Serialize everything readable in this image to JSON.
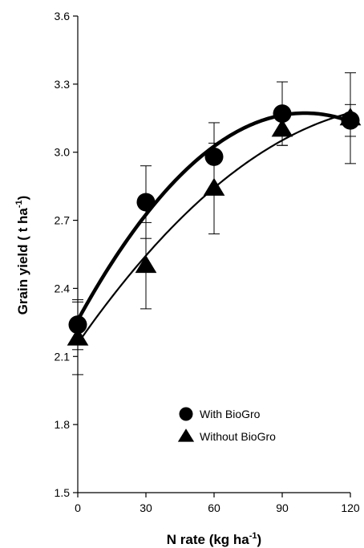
{
  "chart_data": {
    "type": "scatter",
    "title": "",
    "xlabel": "N rate (kg ha",
    "xlabel_sup": "-1",
    "xlabel_end": ")",
    "ylabel": "Grain yield ( t ha",
    "ylabel_sup": "-1",
    "ylabel_end": ")",
    "xlim": [
      0,
      120
    ],
    "ylim": [
      1.5,
      3.6
    ],
    "x_ticks": [
      "0",
      "30",
      "60",
      "90",
      "120"
    ],
    "y_ticks": [
      "1.5",
      "1.8",
      "2.1",
      "2.4",
      "2.7",
      "3.0",
      "3.3",
      "3.6"
    ],
    "grid": false,
    "legend_position": "lower-center",
    "series": [
      {
        "name": "With BioGro",
        "marker": "circle",
        "x": [
          0,
          30,
          60,
          90,
          120
        ],
        "y": [
          2.24,
          2.78,
          2.98,
          3.17,
          3.14
        ],
        "err": [
          0.11,
          0.16,
          0.15,
          0.14,
          0.07
        ],
        "fit": "quadratic",
        "fit_weight": "thick"
      },
      {
        "name": "Without BioGro",
        "marker": "triangle",
        "x": [
          0,
          30,
          60,
          90,
          120
        ],
        "y": [
          2.18,
          2.5,
          2.84,
          3.1,
          3.15
        ],
        "err": [
          0.16,
          0.19,
          0.2,
          0.07,
          0.2
        ],
        "fit": "quadratic",
        "fit_weight": "thin"
      }
    ]
  }
}
